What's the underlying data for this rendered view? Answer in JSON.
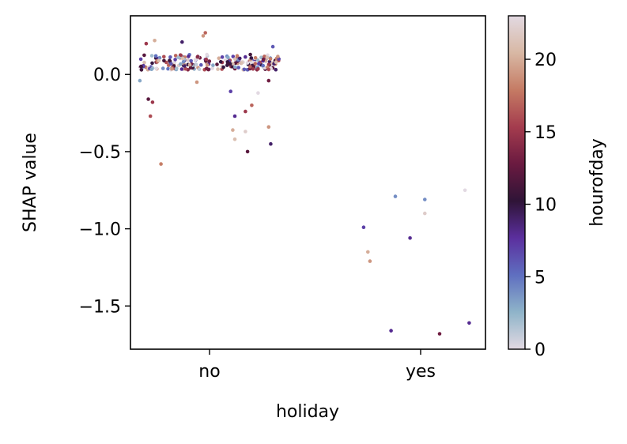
{
  "chart_data": {
    "type": "scatter",
    "title": "",
    "xlabel": "holiday",
    "ylabel": "SHAP value",
    "x_categories": [
      "no",
      "yes"
    ],
    "ylim": [
      -1.78,
      0.38
    ],
    "yticks": [
      0.0,
      -0.5,
      -1.0,
      -1.5
    ],
    "ytick_labels": [
      "0.0",
      "−0.5",
      "−1.0",
      "−1.5"
    ],
    "grid": false,
    "colorbar": {
      "label": "hourofday",
      "range": [
        0,
        23
      ],
      "ticks": [
        0,
        5,
        10,
        15,
        20
      ],
      "tick_labels": [
        "0",
        "5",
        "10",
        "15",
        "20"
      ],
      "colormap": "twilight",
      "colors": [
        "#e2d9e2",
        "#8fb4c9",
        "#5f6fc0",
        "#5b2f9e",
        "#2f1437",
        "#6a1a40",
        "#a43c4e",
        "#c57b64",
        "#d8b8a4",
        "#e2d9e2"
      ]
    },
    "points": [
      {
        "cat": "no",
        "jitter": -0.33,
        "y": -0.04,
        "h": 3
      },
      {
        "cat": "no",
        "jitter": -0.29,
        "y": -0.16,
        "h": 12
      },
      {
        "cat": "no",
        "jitter": -0.27,
        "y": -0.18,
        "h": 15
      },
      {
        "cat": "no",
        "jitter": -0.28,
        "y": -0.27,
        "h": 16
      },
      {
        "cat": "no",
        "jitter": -0.23,
        "y": -0.58,
        "h": 18
      },
      {
        "cat": "no",
        "jitter": -0.06,
        "y": -0.05,
        "h": 19
      },
      {
        "cat": "no",
        "jitter": 0.1,
        "y": -0.11,
        "h": 7
      },
      {
        "cat": "no",
        "jitter": 0.17,
        "y": -0.24,
        "h": 15
      },
      {
        "cat": "no",
        "jitter": 0.12,
        "y": -0.27,
        "h": 8
      },
      {
        "cat": "no",
        "jitter": 0.2,
        "y": -0.2,
        "h": 17
      },
      {
        "cat": "no",
        "jitter": 0.11,
        "y": -0.36,
        "h": 20
      },
      {
        "cat": "no",
        "jitter": 0.12,
        "y": -0.42,
        "h": 21
      },
      {
        "cat": "no",
        "jitter": 0.17,
        "y": -0.37,
        "h": 22
      },
      {
        "cat": "no",
        "jitter": 0.23,
        "y": -0.12,
        "h": 23
      },
      {
        "cat": "no",
        "jitter": 0.18,
        "y": -0.5,
        "h": 12
      },
      {
        "cat": "no",
        "jitter": 0.28,
        "y": -0.34,
        "h": 19
      },
      {
        "cat": "no",
        "jitter": 0.29,
        "y": -0.45,
        "h": 9
      },
      {
        "cat": "no",
        "jitter": 0.28,
        "y": -0.04,
        "h": 13
      },
      {
        "cat": "no",
        "jitter": -0.02,
        "y": 0.27,
        "h": 17
      },
      {
        "cat": "no",
        "jitter": -0.03,
        "y": 0.25,
        "h": 19
      },
      {
        "cat": "no",
        "jitter": -0.26,
        "y": 0.22,
        "h": 20
      },
      {
        "cat": "no",
        "jitter": -0.3,
        "y": 0.2,
        "h": 15
      },
      {
        "cat": "no",
        "jitter": -0.13,
        "y": 0.21,
        "h": 9
      },
      {
        "cat": "no",
        "jitter": 0.3,
        "y": 0.18,
        "h": 6
      },
      {
        "cat": "yes",
        "jitter": -0.27,
        "y": -0.99,
        "h": 7
      },
      {
        "cat": "yes",
        "jitter": -0.25,
        "y": -1.15,
        "h": 20
      },
      {
        "cat": "yes",
        "jitter": -0.24,
        "y": -1.21,
        "h": 19
      },
      {
        "cat": "yes",
        "jitter": -0.12,
        "y": -0.79,
        "h": 4
      },
      {
        "cat": "yes",
        "jitter": -0.05,
        "y": -1.06,
        "h": 8
      },
      {
        "cat": "yes",
        "jitter": 0.02,
        "y": -0.9,
        "h": 22
      },
      {
        "cat": "yes",
        "jitter": 0.02,
        "y": -0.81,
        "h": 4
      },
      {
        "cat": "yes",
        "jitter": 0.21,
        "y": -0.75,
        "h": 23
      },
      {
        "cat": "yes",
        "jitter": -0.14,
        "y": -1.66,
        "h": 8
      },
      {
        "cat": "yes",
        "jitter": 0.09,
        "y": -1.68,
        "h": 13
      },
      {
        "cat": "yes",
        "jitter": 0.23,
        "y": -1.61,
        "h": 8
      }
    ],
    "band": {
      "cat": "no",
      "count": 240,
      "y_min": 0.03,
      "y_max": 0.13,
      "spread": 0.33
    }
  }
}
